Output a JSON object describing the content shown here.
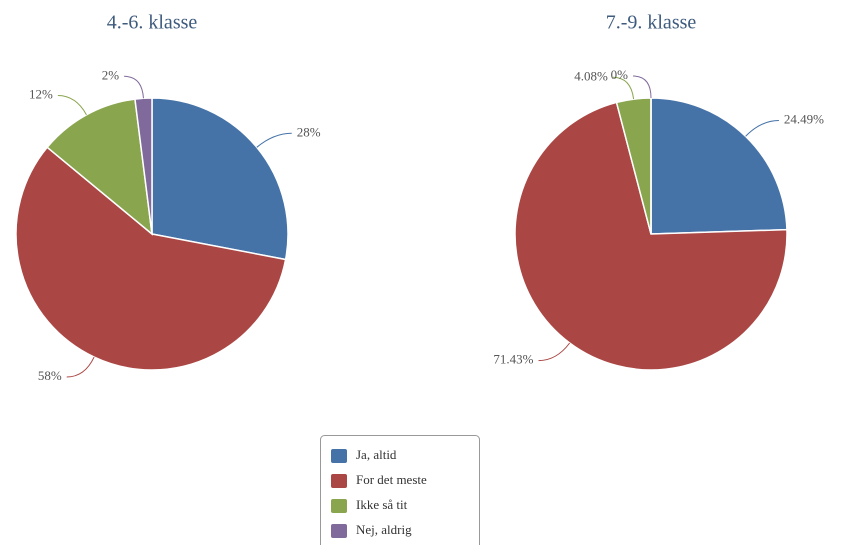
{
  "chart_data": [
    {
      "type": "pie",
      "title": "4.-6. klasse",
      "categories": [
        "Ja, altid",
        "For det meste",
        "Ikke så tit",
        "Nej, aldrig"
      ],
      "values": [
        28,
        58,
        12,
        2
      ],
      "value_labels": [
        "28%",
        "58%",
        "12%",
        "2%"
      ],
      "colors": [
        "#4572a7",
        "#aa4643",
        "#89a54e",
        "#80699b"
      ]
    },
    {
      "type": "pie",
      "title": "7.-9. klasse",
      "categories": [
        "Ja, altid",
        "For det meste",
        "Ikke så tit",
        "Nej, aldrig"
      ],
      "values": [
        24.49,
        71.43,
        4.08,
        0
      ],
      "value_labels": [
        "24.49%",
        "71.43%",
        "4.08%",
        "0%"
      ],
      "colors": [
        "#4572a7",
        "#aa4643",
        "#89a54e",
        "#80699b"
      ]
    }
  ]
}
